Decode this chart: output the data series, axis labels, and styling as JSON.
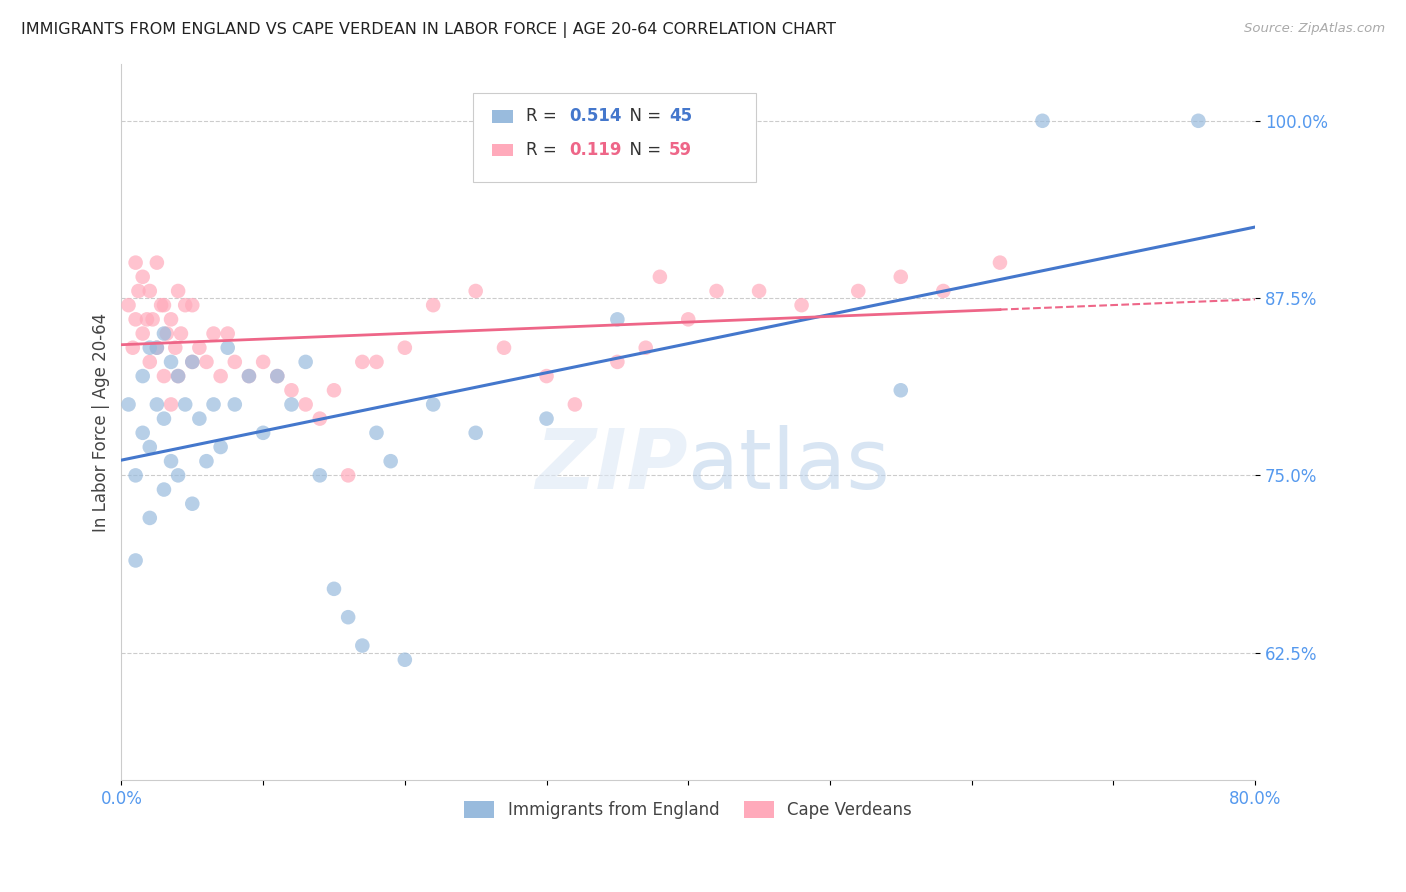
{
  "title": "IMMIGRANTS FROM ENGLAND VS CAPE VERDEAN IN LABOR FORCE | AGE 20-64 CORRELATION CHART",
  "source": "Source: ZipAtlas.com",
  "ylabel": "In Labor Force | Age 20-64",
  "ytick_labels": [
    "62.5%",
    "75.0%",
    "87.5%",
    "100.0%"
  ],
  "ytick_values": [
    0.625,
    0.75,
    0.875,
    1.0
  ],
  "xlim": [
    0.0,
    0.8
  ],
  "ylim": [
    0.535,
    1.04
  ],
  "legend_england_R": 0.514,
  "legend_england_N": 45,
  "legend_capeverde_R": 0.119,
  "legend_capeverde_N": 59,
  "color_england": "#99bbdd",
  "color_capeverde": "#ffaabb",
  "color_england_line": "#4477cc",
  "color_capeverde_line": "#ee6688",
  "color_axis_labels": "#5599ee",
  "england_x": [
    0.005,
    0.01,
    0.01,
    0.015,
    0.015,
    0.02,
    0.02,
    0.02,
    0.025,
    0.025,
    0.03,
    0.03,
    0.03,
    0.035,
    0.035,
    0.04,
    0.04,
    0.045,
    0.05,
    0.05,
    0.055,
    0.06,
    0.065,
    0.07,
    0.075,
    0.08,
    0.09,
    0.1,
    0.11,
    0.12,
    0.13,
    0.14,
    0.15,
    0.16,
    0.17,
    0.18,
    0.19,
    0.2,
    0.22,
    0.25,
    0.3,
    0.35,
    0.55,
    0.65,
    0.76
  ],
  "england_y": [
    0.8,
    0.69,
    0.75,
    0.78,
    0.82,
    0.72,
    0.77,
    0.84,
    0.8,
    0.84,
    0.74,
    0.79,
    0.85,
    0.76,
    0.83,
    0.75,
    0.82,
    0.8,
    0.73,
    0.83,
    0.79,
    0.76,
    0.8,
    0.77,
    0.84,
    0.8,
    0.82,
    0.78,
    0.82,
    0.8,
    0.83,
    0.75,
    0.67,
    0.65,
    0.63,
    0.78,
    0.76,
    0.62,
    0.8,
    0.78,
    0.79,
    0.86,
    0.81,
    1.0,
    1.0
  ],
  "capeverde_x": [
    0.005,
    0.008,
    0.01,
    0.01,
    0.012,
    0.015,
    0.015,
    0.018,
    0.02,
    0.02,
    0.022,
    0.025,
    0.025,
    0.028,
    0.03,
    0.03,
    0.032,
    0.035,
    0.035,
    0.038,
    0.04,
    0.04,
    0.042,
    0.045,
    0.05,
    0.05,
    0.055,
    0.06,
    0.065,
    0.07,
    0.075,
    0.08,
    0.09,
    0.1,
    0.11,
    0.12,
    0.13,
    0.14,
    0.15,
    0.16,
    0.17,
    0.18,
    0.2,
    0.22,
    0.25,
    0.27,
    0.3,
    0.32,
    0.35,
    0.37,
    0.38,
    0.4,
    0.42,
    0.45,
    0.48,
    0.52,
    0.55,
    0.58,
    0.62
  ],
  "capeverde_y": [
    0.87,
    0.84,
    0.86,
    0.9,
    0.88,
    0.85,
    0.89,
    0.86,
    0.83,
    0.88,
    0.86,
    0.84,
    0.9,
    0.87,
    0.82,
    0.87,
    0.85,
    0.8,
    0.86,
    0.84,
    0.82,
    0.88,
    0.85,
    0.87,
    0.83,
    0.87,
    0.84,
    0.83,
    0.85,
    0.82,
    0.85,
    0.83,
    0.82,
    0.83,
    0.82,
    0.81,
    0.8,
    0.79,
    0.81,
    0.75,
    0.83,
    0.83,
    0.84,
    0.87,
    0.88,
    0.84,
    0.82,
    0.8,
    0.83,
    0.84,
    0.89,
    0.86,
    0.88,
    0.88,
    0.87,
    0.88,
    0.89,
    0.88,
    0.9
  ]
}
